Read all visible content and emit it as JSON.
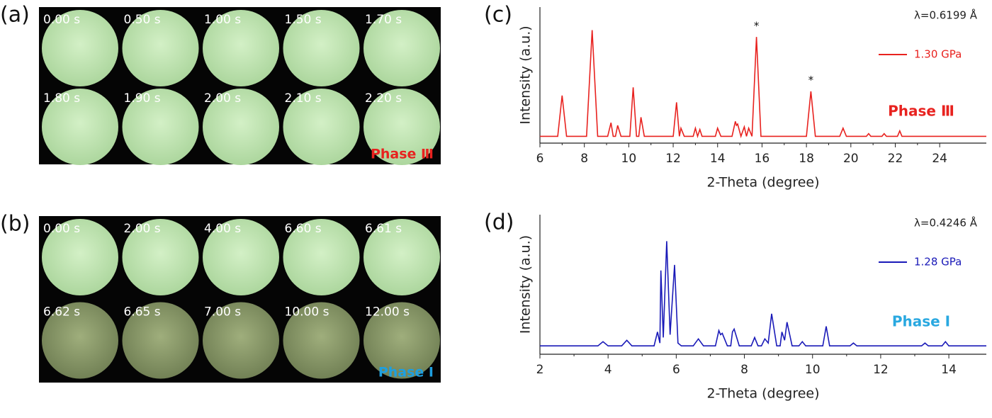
{
  "panels": [
    {
      "label": "(a)",
      "times": [
        "0.00 s",
        "0.50 s",
        "1.00 s",
        "1.50 s",
        "1.70 s",
        "1.80 s",
        "1.90 s",
        "2.00 s",
        "2.10 s",
        "2.20 s"
      ],
      "phase": "Phase Ⅲ",
      "phase_color": "#e8221f"
    },
    {
      "label": "(b)",
      "times": [
        "0.00 s",
        "2.00 s",
        "4.00 s",
        "6.60 s",
        "6.61 s",
        "6.62 s",
        "6.65 s",
        "7.00 s",
        "10.00 s",
        "12.00 s"
      ],
      "phase": "Phase Ⅰ",
      "phase_color": "#1e9fe0"
    }
  ],
  "chart_data": [
    {
      "type": "line",
      "label": "(c)",
      "wavelength": "λ=0.6199 Å",
      "x_label": "2-Theta (degree)",
      "y_label": "Intensity (a.u.)",
      "x": [
        6,
        6.8,
        7.0,
        7.2,
        8.1,
        8.35,
        8.6,
        9.05,
        9.2,
        9.3,
        9.4,
        9.5,
        9.65,
        10.05,
        10.2,
        10.35,
        10.45,
        10.55,
        10.7,
        12.0,
        12.15,
        12.28,
        12.35,
        12.5,
        12.9,
        13.0,
        13.1,
        13.2,
        13.3,
        13.9,
        14.0,
        14.15,
        14.65,
        14.8,
        14.85,
        14.9,
        15.05,
        15.2,
        15.3,
        15.4,
        15.55,
        15.75,
        15.95,
        18.0,
        18.2,
        18.4,
        19.5,
        19.65,
        19.8,
        20.7,
        20.8,
        20.9,
        21.4,
        21.5,
        21.6,
        22.1,
        22.2,
        22.3,
        26.1
      ],
      "series": [
        {
          "name": "1.30 GPa",
          "color": "#e8221f",
          "values": [
            5,
            5,
            35,
            5,
            5,
            83,
            5,
            5,
            15,
            5,
            5,
            13,
            5,
            5,
            41,
            5,
            5,
            19,
            5,
            5,
            30,
            5,
            11,
            5,
            5,
            11,
            5,
            10,
            5,
            5,
            11,
            5,
            5,
            16,
            13,
            14,
            5,
            12,
            5,
            11,
            5,
            78,
            5,
            5,
            38,
            5,
            5,
            11,
            5,
            5,
            7,
            5,
            5,
            7,
            5,
            5,
            9,
            5,
            5
          ]
        }
      ],
      "xlim": [
        6,
        26.1
      ],
      "xticks": [
        6,
        8,
        10,
        12,
        14,
        16,
        18,
        20,
        22,
        24
      ],
      "ylim": [
        0,
        100
      ],
      "phase": "Phase Ⅲ",
      "phase_color": "#e8221f",
      "annotations": [
        {
          "text": "*",
          "x": 15.75,
          "y": 86
        },
        {
          "text": "*",
          "x": 18.2,
          "y": 46
        }
      ]
    },
    {
      "type": "line",
      "label": "(d)",
      "wavelength": "λ=0.4246 Å",
      "x_label": "2-Theta (degree)",
      "y_label": "Intensity (a.u.)",
      "x": [
        2,
        3.7,
        3.85,
        4.0,
        4.4,
        4.55,
        4.7,
        5.35,
        5.45,
        5.52,
        5.55,
        5.62,
        5.72,
        5.82,
        5.95,
        6.05,
        6.15,
        6.5,
        6.65,
        6.8,
        7.15,
        7.25,
        7.3,
        7.35,
        7.5,
        7.6,
        7.65,
        7.7,
        7.85,
        8.2,
        8.3,
        8.4,
        8.5,
        8.6,
        8.7,
        8.8,
        8.95,
        9.05,
        9.1,
        9.18,
        9.25,
        9.4,
        9.6,
        9.7,
        9.8,
        10.3,
        10.4,
        10.5,
        11.1,
        11.2,
        11.3,
        13.2,
        13.3,
        13.4,
        13.8,
        13.9,
        14.0,
        15.1
      ],
      "series": [
        {
          "name": "1.28 GPa",
          "color": "#1a1ab8",
          "values": [
            6,
            6,
            9,
            6,
            6,
            10,
            6,
            6,
            16,
            8,
            60,
            12,
            81,
            14,
            64,
            8,
            6,
            6,
            11,
            6,
            6,
            17,
            14,
            15,
            6,
            6,
            16,
            18,
            6,
            6,
            12,
            6,
            6,
            11,
            8,
            29,
            6,
            6,
            16,
            10,
            23,
            6,
            6,
            9,
            6,
            6,
            20,
            6,
            6,
            8,
            6,
            6,
            8,
            6,
            6,
            9,
            6,
            6
          ]
        }
      ],
      "xlim": [
        2,
        15.1
      ],
      "xticks": [
        2,
        4,
        6,
        8,
        10,
        12,
        14
      ],
      "ylim": [
        0,
        100
      ],
      "phase": "Phase Ⅰ",
      "phase_color": "#29a8e0",
      "annotations": []
    }
  ]
}
